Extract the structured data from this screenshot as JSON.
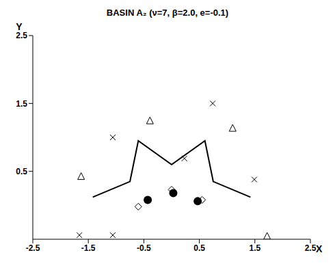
{
  "chart_data": {
    "type": "scatter",
    "title": "BASIN A₂ (ν=7,  β=2.0, e=-0.1)",
    "x_label": "X",
    "y_label": "Y",
    "xlim": [
      -2.5,
      2.5
    ],
    "xticks": [
      -2.5,
      -1.5,
      -0.5,
      0.5,
      1.5,
      2.5
    ],
    "ylim": [
      -0.5,
      2.5
    ],
    "yticks": [
      0.5,
      1.5,
      2.5
    ],
    "series": [
      {
        "type": "line",
        "color": "#000000",
        "marker": "none",
        "x": [
          -1.42,
          -0.75,
          -0.6,
          0.0,
          0.6,
          0.75,
          1.42
        ],
        "y": [
          0.12,
          0.35,
          0.95,
          0.6,
          0.95,
          0.35,
          0.12
        ]
      },
      {
        "type": "scatter",
        "color": "#000000",
        "marker": "circle",
        "x": [
          -0.43,
          0.03,
          0.47
        ],
        "y": [
          0.08,
          0.18,
          0.06
        ]
      },
      {
        "type": "scatter",
        "color": "#000000",
        "marker": "triangle",
        "x": [
          -0.39,
          1.1,
          -1.63,
          1.72
        ],
        "y": [
          1.25,
          1.14,
          0.43,
          -0.45
        ]
      },
      {
        "type": "scatter",
        "color": "#000000",
        "marker": "cross",
        "x": [
          -1.06,
          0.23,
          0.74,
          1.49,
          -1.66,
          -1.06
        ],
        "y": [
          1.0,
          0.69,
          1.5,
          0.38,
          -0.44,
          -0.44
        ]
      },
      {
        "type": "scatter",
        "color": "#000000",
        "marker": "diamond",
        "x": [
          -0.6,
          0.0,
          0.55
        ],
        "y": [
          -0.02,
          0.23,
          0.08
        ]
      }
    ]
  }
}
